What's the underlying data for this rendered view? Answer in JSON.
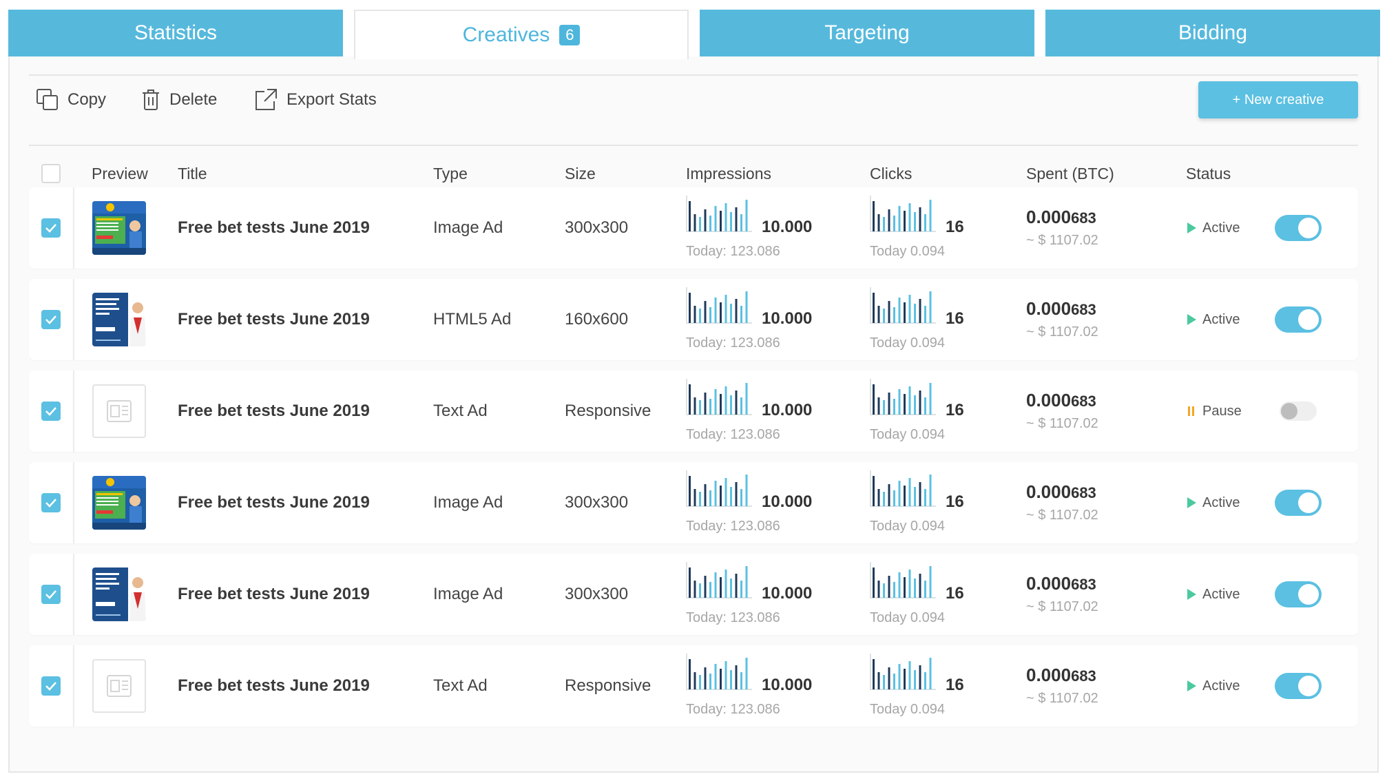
{
  "tabs": [
    {
      "label": "Statistics"
    },
    {
      "label": "Creatives",
      "badge": "6"
    },
    {
      "label": "Targeting"
    },
    {
      "label": "Bidding"
    }
  ],
  "toolbar": {
    "copy": "Copy",
    "delete": "Delete",
    "export": "Export Stats",
    "new_creative": "+ New creative"
  },
  "headers": {
    "preview": "Preview",
    "title": "Title",
    "type": "Type",
    "size": "Size",
    "impressions": "Impressions",
    "clicks": "Clicks",
    "spent": "Spent (BTC)",
    "status": "Status"
  },
  "rows": [
    {
      "title": "Free bet tests June 2019",
      "type": "Image Ad",
      "size": "300x300",
      "impressions": "10.000",
      "impressions_today": "Today: 123.086",
      "clicks": "16",
      "clicks_today": "Today 0.094",
      "spent_main": "0.000",
      "spent_rest": "683",
      "spent_usd": "~ $ 1107.02",
      "status": "Active",
      "enabled": true,
      "preview": "banner-a"
    },
    {
      "title": "Free bet tests June 2019",
      "type": "HTML5 Ad",
      "size": "160x600",
      "impressions": "10.000",
      "impressions_today": "Today: 123.086",
      "clicks": "16",
      "clicks_today": "Today 0.094",
      "spent_main": "0.000",
      "spent_rest": "683",
      "spent_usd": "~ $ 1107.02",
      "status": "Active",
      "enabled": true,
      "preview": "banner-b"
    },
    {
      "title": "Free bet tests June 2019",
      "type": "Text Ad",
      "size": "Responsive",
      "impressions": "10.000",
      "impressions_today": "Today: 123.086",
      "clicks": "16",
      "clicks_today": "Today 0.094",
      "spent_main": "0.000",
      "spent_rest": "683",
      "spent_usd": "~ $ 1107.02",
      "status": "Pause",
      "enabled": false,
      "preview": "text"
    },
    {
      "title": "Free bet tests June 2019",
      "type": "Image Ad",
      "size": "300x300",
      "impressions": "10.000",
      "impressions_today": "Today: 123.086",
      "clicks": "16",
      "clicks_today": "Today 0.094",
      "spent_main": "0.000",
      "spent_rest": "683",
      "spent_usd": "~ $ 1107.02",
      "status": "Active",
      "enabled": true,
      "preview": "banner-a"
    },
    {
      "title": "Free bet tests June 2019",
      "type": "Image Ad",
      "size": "300x300",
      "impressions": "10.000",
      "impressions_today": "Today: 123.086",
      "clicks": "16",
      "clicks_today": "Today 0.094",
      "spent_main": "0.000",
      "spent_rest": "683",
      "spent_usd": "~ $ 1107.02",
      "status": "Active",
      "enabled": true,
      "preview": "banner-b"
    },
    {
      "title": "Free bet tests June 2019",
      "type": "Text Ad",
      "size": "Responsive",
      "impressions": "10.000",
      "impressions_today": "Today: 123.086",
      "clicks": "16",
      "clicks_today": "Today 0.094",
      "spent_main": "0.000",
      "spent_rest": "683",
      "spent_usd": "~ $ 1107.02",
      "status": "Active",
      "enabled": true,
      "preview": "text"
    }
  ],
  "colors": {
    "accent": "#5bc0e2",
    "bar_dark": "#1f3a5a",
    "bar_light": "#5bc0e2",
    "pause": "#f5a623"
  },
  "icons": {
    "copy": "copy-icon",
    "delete": "trash-icon",
    "export": "external-link-icon",
    "play": "play-icon",
    "pause": "pause-icon"
  }
}
